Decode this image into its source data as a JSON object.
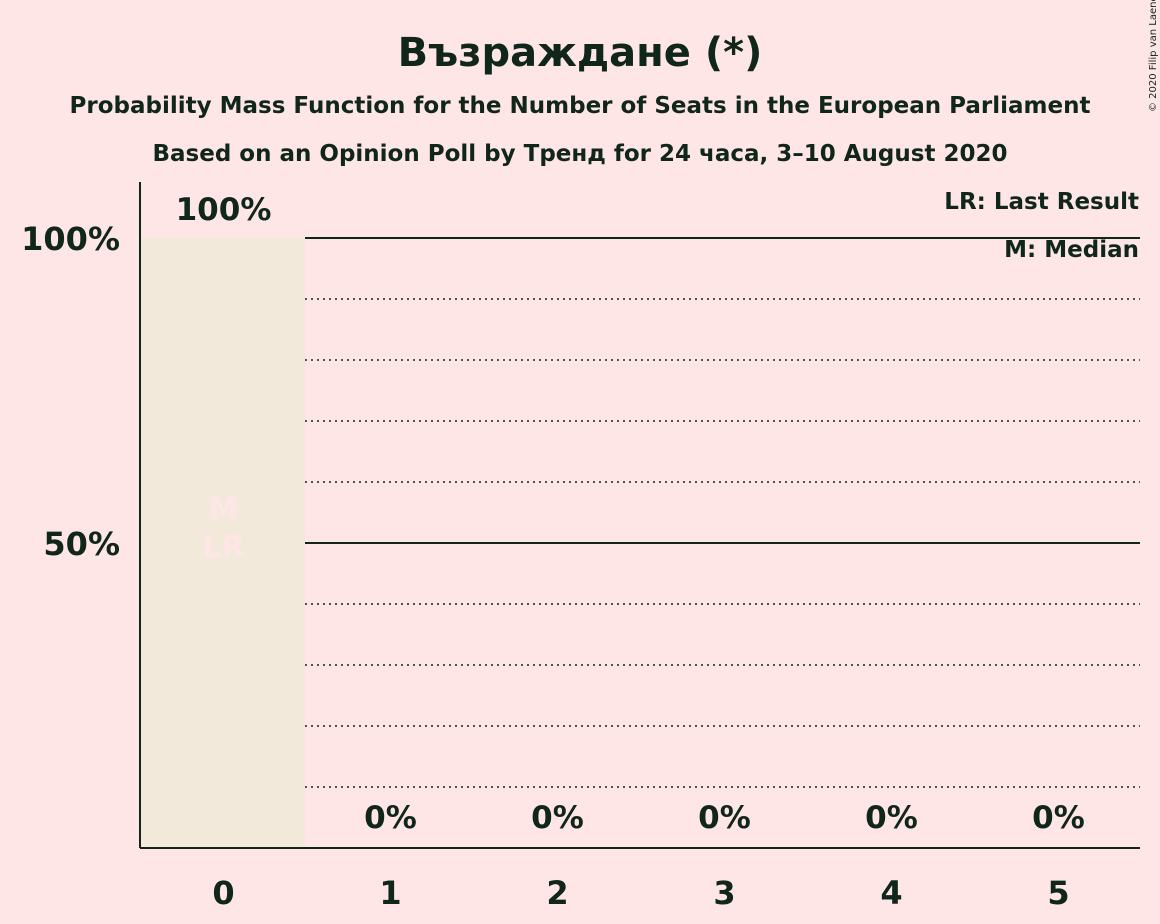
{
  "title": "Възраждане (*)",
  "subtitle1": "Probability Mass Function for the Number of Seats in the European Parliament",
  "subtitle2": "Based on an Opinion Poll by Тренд for 24 часа, 3–10 August 2020",
  "copyright": "© 2020 Filip van Laenen",
  "legend": {
    "last_result": "LR: Last Result",
    "median": "M: Median"
  },
  "markers": {
    "median": "M",
    "last_result": "LR"
  },
  "colors": {
    "background": "#ffe6e6",
    "bar": "#f3e9da",
    "text": "#10261b"
  },
  "chart_data": {
    "type": "bar",
    "categories": [
      "0",
      "1",
      "2",
      "3",
      "4",
      "5"
    ],
    "values": [
      100,
      0,
      0,
      0,
      0,
      0
    ],
    "value_labels": [
      "100%",
      "0%",
      "0%",
      "0%",
      "0%",
      "0%"
    ],
    "y_ticks": [
      {
        "value": 50,
        "label": "50%"
      },
      {
        "value": 100,
        "label": "100%"
      }
    ],
    "ylim": [
      0,
      100
    ],
    "median_seats": "0",
    "last_result_seats": "0",
    "minor_grid_step": 10,
    "legend_position": "top-right"
  }
}
